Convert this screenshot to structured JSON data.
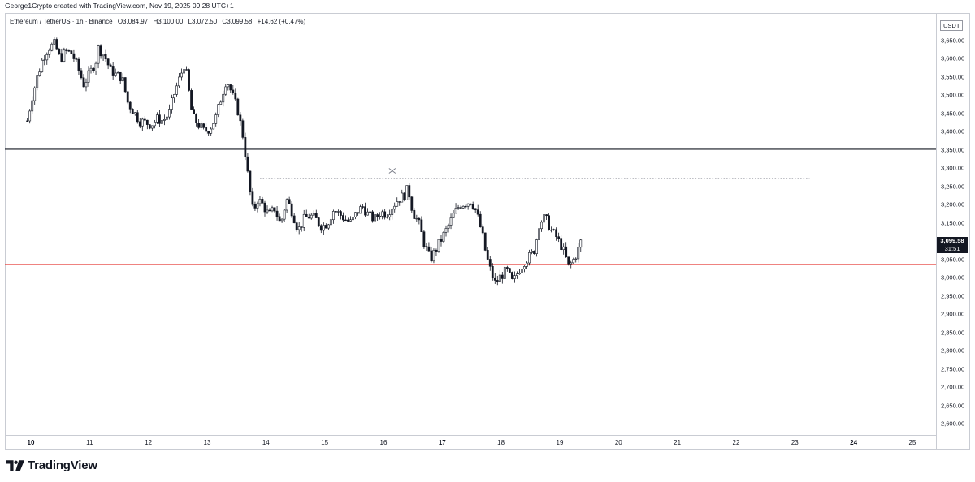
{
  "header": {
    "created_by": "George1Crypto created with TradingView.com, Nov 19, 2025 09:28 UTC+1"
  },
  "legend": {
    "symbol": "Ethereum / TetherUS · 1h · Binance",
    "open": "O3,084.97",
    "high": "H3,100.00",
    "low": "L3,072.50",
    "close": "C3,099.58",
    "change": "+14.62 (+0.47%)"
  },
  "price_axis": {
    "currency": "USDT",
    "labels": [
      "3,650.00",
      "3,600.00",
      "3,550.00",
      "3,500.00",
      "3,450.00",
      "3,400.00",
      "3,350.00",
      "3,300.00",
      "3,250.00",
      "3,200.00",
      "3,150.00",
      "3,100.00",
      "3,050.00",
      "3,000.00",
      "2,950.00",
      "2,900.00",
      "2,850.00",
      "2,800.00",
      "2,750.00",
      "2,700.00",
      "2,650.00",
      "2,600.00"
    ]
  },
  "time_axis": {
    "labels": [
      "10",
      "11",
      "12",
      "13",
      "14",
      "15",
      "16",
      "17",
      "18",
      "19",
      "20",
      "21",
      "22",
      "23",
      "24",
      "25"
    ],
    "bold": [
      "10",
      "17",
      "24"
    ]
  },
  "last_price": {
    "price": "3,099.58",
    "countdown": "31:51"
  },
  "brand": {
    "name": "TradingView"
  },
  "colors": {
    "up": "#089981",
    "candle": "#131722",
    "support_line": "#e53935",
    "resistance_line": "#131722",
    "dotted_line": "#787b86"
  },
  "chart_data": {
    "type": "candlestick",
    "symbol": "Ethereum / TetherUS",
    "interval": "1h",
    "exchange": "Binance",
    "y_unit": "USDT",
    "ylim": [
      2575,
      3690
    ],
    "x_axis_days": [
      10,
      11,
      12,
      13,
      14,
      15,
      16,
      17,
      18,
      19,
      20,
      21,
      22,
      23,
      24,
      25
    ],
    "horizontal_lines": [
      {
        "price": 3352,
        "style": "solid",
        "color": "#131722"
      },
      {
        "price": 3036,
        "style": "solid",
        "color": "#e53935"
      },
      {
        "price": 3272,
        "style": "dotted",
        "color": "#787b86",
        "from_day": 13.9,
        "to_day": 23.25
      }
    ],
    "close_path": [
      [
        9.94,
        3430
      ],
      [
        10.02,
        3495
      ],
      [
        10.1,
        3545
      ],
      [
        10.2,
        3600
      ],
      [
        10.3,
        3630
      ],
      [
        10.4,
        3640
      ],
      [
        10.5,
        3600
      ],
      [
        10.6,
        3620
      ],
      [
        10.7,
        3615
      ],
      [
        10.8,
        3575
      ],
      [
        10.9,
        3530
      ],
      [
        11.0,
        3560
      ],
      [
        11.1,
        3590
      ],
      [
        11.15,
        3630
      ],
      [
        11.25,
        3610
      ],
      [
        11.35,
        3570
      ],
      [
        11.45,
        3555
      ],
      [
        11.55,
        3550
      ],
      [
        11.65,
        3480
      ],
      [
        11.75,
        3455
      ],
      [
        11.85,
        3430
      ],
      [
        11.95,
        3425
      ],
      [
        12.05,
        3420
      ],
      [
        12.15,
        3435
      ],
      [
        12.25,
        3430
      ],
      [
        12.35,
        3450
      ],
      [
        12.45,
        3510
      ],
      [
        12.55,
        3555
      ],
      [
        12.62,
        3590
      ],
      [
        12.68,
        3520
      ],
      [
        12.75,
        3440
      ],
      [
        12.85,
        3420
      ],
      [
        12.95,
        3400
      ],
      [
        13.05,
        3410
      ],
      [
        13.15,
        3440
      ],
      [
        13.25,
        3500
      ],
      [
        13.33,
        3545
      ],
      [
        13.42,
        3505
      ],
      [
        13.52,
        3460
      ],
      [
        13.62,
        3380
      ],
      [
        13.7,
        3270
      ],
      [
        13.78,
        3180
      ],
      [
        13.86,
        3215
      ],
      [
        13.95,
        3200
      ],
      [
        14.05,
        3170
      ],
      [
        14.15,
        3190
      ],
      [
        14.25,
        3145
      ],
      [
        14.35,
        3215
      ],
      [
        14.45,
        3180
      ],
      [
        14.55,
        3130
      ],
      [
        14.65,
        3160
      ],
      [
        14.75,
        3170
      ],
      [
        14.85,
        3160
      ],
      [
        14.95,
        3140
      ],
      [
        15.05,
        3150
      ],
      [
        15.15,
        3185
      ],
      [
        15.25,
        3175
      ],
      [
        15.35,
        3160
      ],
      [
        15.45,
        3150
      ],
      [
        15.55,
        3180
      ],
      [
        15.65,
        3195
      ],
      [
        15.75,
        3170
      ],
      [
        15.85,
        3160
      ],
      [
        15.95,
        3180
      ],
      [
        16.05,
        3175
      ],
      [
        16.15,
        3195
      ],
      [
        16.25,
        3215
      ],
      [
        16.35,
        3225
      ],
      [
        16.42,
        3245
      ],
      [
        16.5,
        3180
      ],
      [
        16.6,
        3150
      ],
      [
        16.7,
        3090
      ],
      [
        16.8,
        3050
      ],
      [
        16.9,
        3080
      ],
      [
        17.0,
        3110
      ],
      [
        17.1,
        3140
      ],
      [
        17.2,
        3175
      ],
      [
        17.3,
        3200
      ],
      [
        17.4,
        3205
      ],
      [
        17.5,
        3210
      ],
      [
        17.58,
        3180
      ],
      [
        17.68,
        3120
      ],
      [
        17.75,
        3060
      ],
      [
        17.82,
        3020
      ],
      [
        17.9,
        2985
      ],
      [
        18.0,
        3005
      ],
      [
        18.1,
        3020
      ],
      [
        18.2,
        2985
      ],
      [
        18.3,
        3020
      ],
      [
        18.4,
        3045
      ],
      [
        18.5,
        3060
      ],
      [
        18.58,
        3080
      ],
      [
        18.65,
        3150
      ],
      [
        18.75,
        3165
      ],
      [
        18.85,
        3130
      ],
      [
        18.95,
        3110
      ],
      [
        19.05,
        3080
      ],
      [
        19.15,
        3030
      ],
      [
        19.22,
        3045
      ],
      [
        19.3,
        3070
      ],
      [
        19.36,
        3099.58
      ]
    ]
  }
}
